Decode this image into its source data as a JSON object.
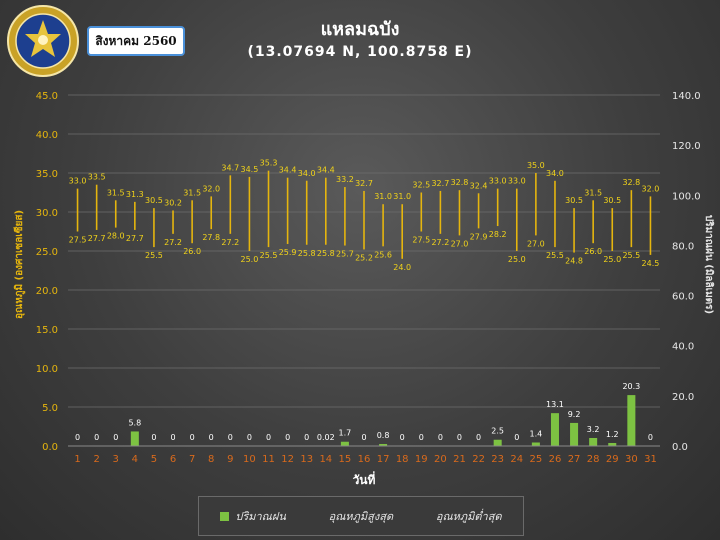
{
  "header": {
    "month_label": "สิงหาคม 2560",
    "title": "แหลมฉบัง",
    "subtitle": "(13.07694 N, 100.8758 E)"
  },
  "legend": {
    "rain": "ปริมาณฝน",
    "tmax": "อุณหภูมิสูงสุด",
    "tmin": "อุณหภูมิต่ำสุด"
  },
  "colors": {
    "rain_bar": "#7dc242",
    "temp_line": "#e5b50e",
    "temp_label": "#f0d21a",
    "day_label": "#d96a1c",
    "axis_label": "#e5b50e"
  },
  "chart_data": {
    "type": "bar",
    "xlabel": "วันที่",
    "ylabel_left": "อุณหภูมิ (องศาเซลเซียส)",
    "ylabel_right": "ปริมาณฝน (มิลลิเมตร)",
    "ylim_left": [
      0,
      45
    ],
    "ylim_right": [
      0,
      140
    ],
    "left_ticks": [
      "0.0",
      "5.0",
      "10.0",
      "15.0",
      "20.0",
      "25.0",
      "30.0",
      "35.0",
      "40.0",
      "45.0"
    ],
    "right_ticks": [
      "0.0",
      "20.0",
      "40.0",
      "60.0",
      "80.0",
      "100.0",
      "120.0",
      "140.0"
    ],
    "days": [
      "1",
      "2",
      "3",
      "4",
      "5",
      "6",
      "7",
      "8",
      "9",
      "10",
      "11",
      "12",
      "13",
      "14",
      "15",
      "16",
      "17",
      "18",
      "19",
      "20",
      "21",
      "22",
      "23",
      "24",
      "25",
      "26",
      "27",
      "28",
      "29",
      "30",
      "31"
    ],
    "rain": [
      0,
      0,
      0,
      5.8,
      0,
      0,
      0,
      0,
      0,
      0,
      0,
      0,
      0,
      0.02,
      1.7,
      0,
      0.8,
      0,
      0,
      0,
      0,
      0,
      2.5,
      0,
      1.4,
      13.1,
      9.2,
      3.2,
      1.2,
      20.3,
      0
    ],
    "rain_labels": [
      "0",
      "0",
      "0",
      "5.8",
      "0",
      "0",
      "0",
      "0",
      "0",
      "0",
      "0",
      "0",
      "0",
      "0.02",
      "1.7",
      "0",
      "0.8",
      "0",
      "0",
      "0",
      "0",
      "0",
      "2.5",
      "0",
      "1.4",
      "13.1",
      "9.2",
      "3.2",
      "1.2",
      "20.3",
      "0"
    ],
    "tmax": [
      33.0,
      33.5,
      31.5,
      31.3,
      30.5,
      30.2,
      31.5,
      32.0,
      34.7,
      34.5,
      35.3,
      34.4,
      34.0,
      34.4,
      33.2,
      32.7,
      31.0,
      31.0,
      32.5,
      32.7,
      32.8,
      32.4,
      33.0,
      33.0,
      35.0,
      34.0,
      30.5,
      31.5,
      30.5,
      32.8,
      32.0
    ],
    "tmin": [
      27.5,
      27.7,
      28.0,
      27.7,
      25.5,
      27.2,
      26.0,
      27.8,
      27.2,
      25.0,
      25.5,
      25.9,
      25.8,
      25.8,
      25.7,
      25.2,
      25.6,
      24.0,
      27.5,
      27.2,
      27.0,
      27.9,
      28.2,
      25.0,
      27.0,
      25.5,
      24.8,
      26.0,
      25.0,
      25.5,
      24.5
    ]
  }
}
